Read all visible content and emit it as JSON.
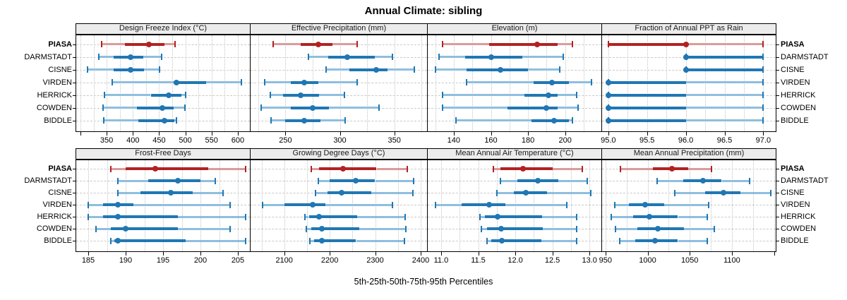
{
  "title": "Annual Climate: sibling",
  "caption": "5th-25th-50th-75th-95th Percentiles",
  "stations": [
    "PIASA",
    "DARMSTADT",
    "CISNE",
    "VIRDEN",
    "HERRICK",
    "COWDEN",
    "BIDDLE"
  ],
  "highlight_station": "PIASA",
  "colors": {
    "highlight": "#B22222",
    "highlight_light": "#DB9B9B",
    "normal": "#1F77B4",
    "normal_light": "#8FBEDF",
    "grid": "#C3C3C3",
    "strip_bg": "#ECECEC",
    "panel_border": "#000000"
  },
  "chart_data": {
    "type": "dotplot-percentile",
    "value_format": "[p5,p25,p50,p75,p95]",
    "legend_position": "none",
    "grid": "dotted vertical at minor steps, dashed horizontal per station row",
    "panels": [
      {
        "title": "Design Freeze Index (°C)",
        "xlim": [
          292,
          623
        ],
        "grid_step": 25,
        "tick_step": 50,
        "labels": [
          {
            "v": 350,
            "t": "350"
          },
          {
            "v": 400,
            "t": "400"
          },
          {
            "v": 450,
            "t": "450"
          },
          {
            "v": 500,
            "t": "500"
          },
          {
            "v": 550,
            "t": "550"
          },
          {
            "v": 600,
            "t": "600"
          }
        ],
        "series": {
          "PIASA": [
            340,
            385,
            430,
            460,
            480
          ],
          "DARMSTADT": [
            335,
            363,
            395,
            420,
            455
          ],
          "CISNE": [
            314,
            363,
            396,
            421,
            451
          ],
          "VIRDEN": [
            360,
            477,
            483,
            540,
            607
          ],
          "HERRICK": [
            346,
            434,
            468,
            492,
            500
          ],
          "COWDEN": [
            343,
            408,
            456,
            478,
            499
          ],
          "BIDDLE": [
            344,
            411,
            460,
            479,
            483
          ]
        }
      },
      {
        "title": "Effective Precipitation (mm)",
        "xlim": [
          218,
          380
        ],
        "grid_step": 25,
        "tick_step": 50,
        "labels": [
          {
            "v": 250,
            "t": "250"
          },
          {
            "v": 300,
            "t": "300"
          },
          {
            "v": 350,
            "t": "350"
          }
        ],
        "series": {
          "PIASA": [
            239,
            264,
            280,
            293,
            316
          ],
          "DARMSTADT": [
            271,
            289,
            307,
            332,
            348
          ],
          "CISNE": [
            287,
            309,
            333,
            344,
            368
          ],
          "VIRDEN": [
            231,
            255,
            267,
            280,
            316
          ],
          "HERRICK": [
            236,
            248,
            264,
            281,
            304
          ],
          "COWDEN": [
            228,
            255,
            275,
            290,
            336
          ],
          "BIDDLE": [
            237,
            250,
            267,
            282,
            305
          ]
        }
      },
      {
        "title": "Elevation (m)",
        "xlim": [
          126,
          219.5
        ],
        "grid_step": 10,
        "tick_step": 20,
        "labels": [
          {
            "v": 140,
            "t": "140"
          },
          {
            "v": 160,
            "t": "160"
          },
          {
            "v": 180,
            "t": "180"
          },
          {
            "v": 200,
            "t": "200"
          }
        ],
        "series": {
          "PIASA": [
            134,
            159,
            185,
            196,
            204
          ],
          "DARMSTADT": [
            132,
            146,
            160,
            177,
            199
          ],
          "CISNE": [
            130,
            147,
            165,
            180,
            197
          ],
          "VIRDEN": [
            147,
            183,
            193,
            202,
            214
          ],
          "HERRICK": [
            134,
            178,
            191,
            196,
            206
          ],
          "COWDEN": [
            134,
            169,
            190,
            196,
            207
          ],
          "BIDDLE": [
            141,
            182,
            194,
            202,
            204
          ]
        }
      },
      {
        "title": "Fraction of Annual PPT as Rain",
        "xlim": [
          94.92,
          97.16
        ],
        "grid_step": 0.25,
        "tick_step": 0.5,
        "labels": [
          {
            "v": 95,
            "t": "95.0"
          },
          {
            "v": 95.5,
            "t": "95.5"
          },
          {
            "v": 96,
            "t": "96.0"
          },
          {
            "v": 96.5,
            "t": "96.5"
          },
          {
            "v": 97,
            "t": "97.0"
          }
        ],
        "series": {
          "PIASA": [
            95,
            95,
            96,
            96,
            97
          ],
          "DARMSTADT": [
            96,
            96,
            96,
            97,
            97
          ],
          "CISNE": [
            96,
            96,
            96,
            97,
            97
          ],
          "VIRDEN": [
            95,
            95,
            95,
            96,
            97
          ],
          "HERRICK": [
            95,
            95,
            95,
            96,
            97
          ],
          "COWDEN": [
            95,
            95,
            95,
            96,
            97
          ],
          "BIDDLE": [
            95,
            95,
            95,
            96,
            97
          ]
        }
      },
      {
        "title": "Frost-Free Days",
        "xlim": [
          183.4,
          206.6
        ],
        "grid_step": 2.5,
        "tick_step": 5,
        "labels": [
          {
            "v": 185,
            "t": "185"
          },
          {
            "v": 190,
            "t": "190"
          },
          {
            "v": 195,
            "t": "195"
          },
          {
            "v": 200,
            "t": "200"
          },
          {
            "v": 205,
            "t": "205"
          }
        ],
        "series": {
          "PIASA": [
            188,
            190,
            194,
            201,
            206
          ],
          "DARMSTADT": [
            189,
            193,
            197,
            200,
            202
          ],
          "CISNE": [
            189,
            192,
            196,
            199,
            203
          ],
          "VIRDEN": [
            185,
            187,
            189,
            191,
            204
          ],
          "HERRICK": [
            185,
            187,
            189,
            197,
            206
          ],
          "COWDEN": [
            186,
            188,
            190,
            197,
            204
          ],
          "BIDDLE": [
            188,
            188.5,
            189,
            198,
            206
          ]
        }
      },
      {
        "title": "Growing Degree Days (°C)",
        "xlim": [
          2026,
          2414
        ],
        "grid_step": 50,
        "tick_step": 100,
        "labels": [
          {
            "v": 2100,
            "t": "2100"
          },
          {
            "v": 2200,
            "t": "2200"
          },
          {
            "v": 2300,
            "t": "2300"
          },
          {
            "v": 2400,
            "t": "2400"
          }
        ],
        "series": {
          "PIASA": [
            2160,
            2176,
            2230,
            2303,
            2371
          ],
          "DARMSTADT": [
            2175,
            2200,
            2257,
            2300,
            2385
          ],
          "CISNE": [
            2169,
            2195,
            2226,
            2292,
            2383
          ],
          "VIRDEN": [
            2052,
            2100,
            2162,
            2191,
            2338
          ],
          "HERRICK": [
            2145,
            2154,
            2177,
            2260,
            2366
          ],
          "COWDEN": [
            2148,
            2160,
            2182,
            2265,
            2368
          ],
          "BIDDLE": [
            2157,
            2165,
            2182,
            2258,
            2365
          ]
        }
      },
      {
        "title": "Mean Annual Air Temperature (°C)",
        "xlim": [
          10.82,
          13.16
        ],
        "grid_step": 0.25,
        "tick_step": 0.5,
        "labels": [
          {
            "v": 11,
            "t": "11.0"
          },
          {
            "v": 11.5,
            "t": "11.5"
          },
          {
            "v": 12,
            "t": "12.0"
          },
          {
            "v": 12.5,
            "t": "12.5"
          },
          {
            "v": 13,
            "t": "13.0"
          }
        ],
        "series": {
          "PIASA": [
            11.7,
            11.8,
            12.1,
            12.5,
            12.9
          ],
          "DARMSTADT": [
            11.8,
            12.03,
            12.3,
            12.58,
            12.97
          ],
          "CISNE": [
            11.75,
            11.98,
            12.14,
            12.43,
            13.02
          ],
          "VIRDEN": [
            10.92,
            11.28,
            11.65,
            11.87,
            12.69
          ],
          "HERRICK": [
            11.52,
            11.59,
            11.76,
            12.36,
            12.83
          ],
          "COWDEN": [
            11.54,
            11.62,
            11.81,
            12.37,
            12.83
          ],
          "BIDDLE": [
            11.62,
            11.68,
            11.82,
            12.35,
            12.83
          ]
        }
      },
      {
        "title": "Mean Annual Precipitation (mm)",
        "xlim": [
          946,
          1152
        ],
        "grid_step": 25,
        "tick_step": 50,
        "labels": [
          {
            "v": 950,
            "t": "950"
          },
          {
            "v": 1000,
            "t": "1000"
          },
          {
            "v": 1050,
            "t": "1050"
          },
          {
            "v": 1100,
            "t": "1100"
          }
        ],
        "series": {
          "PIASA": [
            968,
            1006,
            1029,
            1048,
            1076
          ],
          "DARMSTADT": [
            1011,
            1042,
            1066,
            1088,
            1121
          ],
          "CISNE": [
            1032,
            1068,
            1090,
            1110,
            1146
          ],
          "VIRDEN": [
            961,
            978,
            997,
            1020,
            1072
          ],
          "HERRICK": [
            957,
            983,
            1002,
            1036,
            1071
          ],
          "COWDEN": [
            962,
            988,
            1012,
            1043,
            1079
          ],
          "BIDDLE": [
            967,
            985,
            1009,
            1036,
            1071
          ]
        }
      }
    ]
  }
}
